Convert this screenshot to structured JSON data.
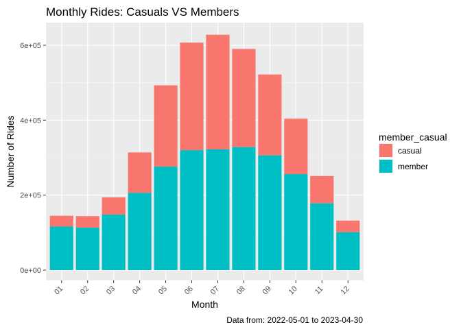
{
  "chart_data": {
    "type": "bar",
    "stacked": true,
    "title": "Monthly Rides: Casuals VS Members",
    "xlabel": "Month",
    "ylabel": "Number of Rides",
    "caption": "Data from: 2022-05-01 to 2023-04-30",
    "categories": [
      "01",
      "02",
      "03",
      "04",
      "05",
      "06",
      "07",
      "08",
      "09",
      "10",
      "11",
      "12"
    ],
    "ylim": [
      0,
      650000
    ],
    "yticks": [
      0,
      200000,
      400000,
      600000
    ],
    "ytick_labels": [
      "0e+00",
      "2e+05",
      "4e+05",
      "6e+05"
    ],
    "grid": true,
    "legend": {
      "title": "member_casual",
      "position": "right"
    },
    "series": [
      {
        "name": "member",
        "color": "#00BFC4",
        "values": [
          116000,
          113000,
          148000,
          206000,
          276000,
          320000,
          322000,
          328000,
          306000,
          256000,
          178000,
          101000
        ]
      },
      {
        "name": "casual",
        "color": "#F8766D",
        "values": [
          29000,
          31000,
          46000,
          108000,
          217000,
          287000,
          306000,
          262000,
          216000,
          148000,
          73000,
          31000
        ]
      }
    ],
    "legend_order": [
      "casual",
      "member"
    ]
  }
}
